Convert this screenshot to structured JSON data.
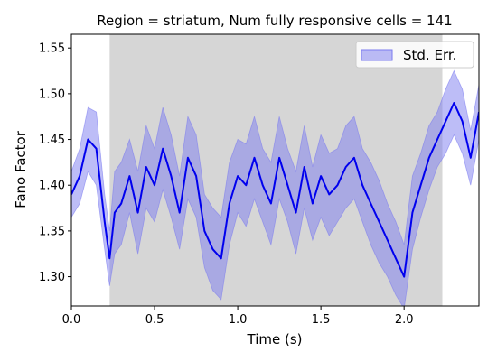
{
  "chart_data": {
    "type": "line",
    "title": "Region = striatum, Num fully responsive cells = 141",
    "xlabel": "Time (s)",
    "ylabel": "Fano Factor",
    "xlim": [
      0.0,
      2.45
    ],
    "ylim": [
      1.268,
      1.565
    ],
    "xticks": [
      0.0,
      0.5,
      1.0,
      1.5,
      2.0
    ],
    "xtick_labels": [
      "0.0",
      "0.5",
      "1.0",
      "1.5",
      "2.0"
    ],
    "yticks": [
      1.3,
      1.35,
      1.4,
      1.45,
      1.5,
      1.55
    ],
    "ytick_labels": [
      "1.30",
      "1.35",
      "1.40",
      "1.45",
      "1.50",
      "1.55"
    ],
    "shaded_region": {
      "x_start": 0.23,
      "x_end": 2.23,
      "color": "#d6d6d6"
    },
    "legend": {
      "entries": [
        "Std. Err."
      ],
      "position": "upper right"
    },
    "grid": false,
    "series": [
      {
        "color": "#0000ee",
        "band_color": "#7b7bf0",
        "x": [
          0.0,
          0.05,
          0.1,
          0.15,
          0.2,
          0.23,
          0.26,
          0.3,
          0.35,
          0.4,
          0.45,
          0.5,
          0.55,
          0.6,
          0.65,
          0.7,
          0.75,
          0.8,
          0.85,
          0.9,
          0.95,
          1.0,
          1.05,
          1.1,
          1.15,
          1.2,
          1.25,
          1.3,
          1.35,
          1.4,
          1.45,
          1.5,
          1.55,
          1.6,
          1.65,
          1.7,
          1.75,
          1.8,
          1.85,
          1.9,
          1.95,
          2.0,
          2.05,
          2.1,
          2.15,
          2.2,
          2.25,
          2.3,
          2.35,
          2.4,
          2.45
        ],
        "mean": [
          1.39,
          1.41,
          1.45,
          1.44,
          1.36,
          1.32,
          1.37,
          1.38,
          1.41,
          1.37,
          1.42,
          1.4,
          1.44,
          1.41,
          1.37,
          1.43,
          1.41,
          1.35,
          1.33,
          1.32,
          1.38,
          1.41,
          1.4,
          1.43,
          1.4,
          1.38,
          1.43,
          1.4,
          1.37,
          1.42,
          1.38,
          1.41,
          1.39,
          1.4,
          1.42,
          1.43,
          1.4,
          1.38,
          1.36,
          1.34,
          1.32,
          1.3,
          1.37,
          1.4,
          1.43,
          1.45,
          1.47,
          1.49,
          1.47,
          1.43,
          1.48
        ],
        "err": [
          0.025,
          0.03,
          0.035,
          0.04,
          0.03,
          0.03,
          0.045,
          0.045,
          0.04,
          0.045,
          0.045,
          0.04,
          0.045,
          0.045,
          0.04,
          0.045,
          0.045,
          0.04,
          0.045,
          0.045,
          0.045,
          0.04,
          0.045,
          0.045,
          0.04,
          0.045,
          0.045,
          0.04,
          0.045,
          0.045,
          0.04,
          0.045,
          0.045,
          0.04,
          0.045,
          0.045,
          0.04,
          0.045,
          0.045,
          0.04,
          0.04,
          0.035,
          0.04,
          0.035,
          0.035,
          0.03,
          0.035,
          0.035,
          0.035,
          0.03,
          0.03
        ]
      }
    ]
  }
}
